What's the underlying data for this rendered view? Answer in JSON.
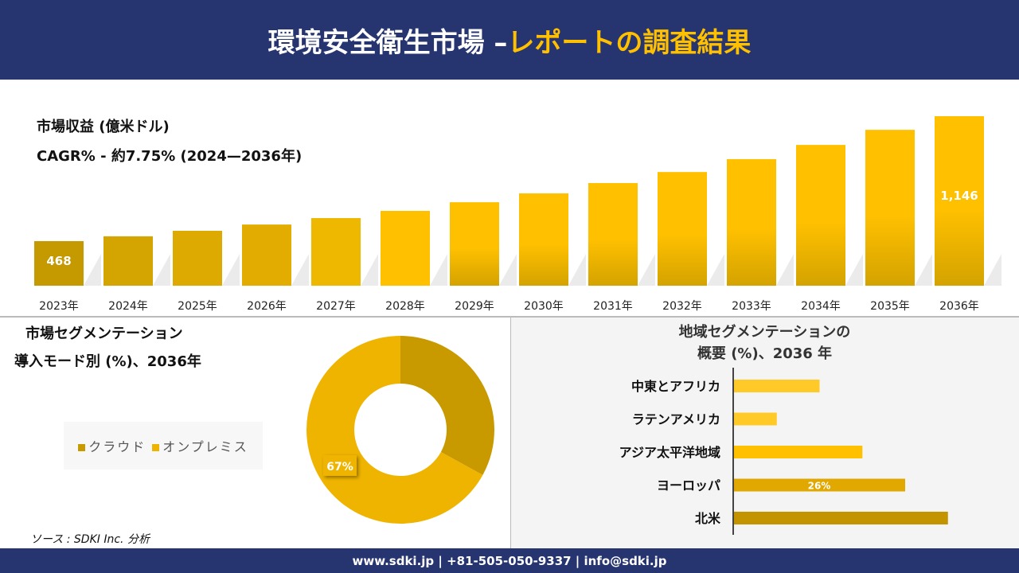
{
  "header": {
    "title_white": "環境安全衛生市場 –",
    "title_yellow": "レポートの調査結果"
  },
  "footer": {
    "contact": "www.sdki.jp | +81-505-050-9337 | info@sdki.jp"
  },
  "source": "ソース : SDKI Inc. 分析",
  "chart_data": [
    {
      "type": "bar",
      "title": "市場収益 (億米ドル)",
      "subtitle": "CAGR% - 約7.75% (2024—2036年)",
      "categories": [
        "2023年",
        "2024年",
        "2025年",
        "2026年",
        "2027年",
        "2028年",
        "2029年",
        "2030年",
        "2031年",
        "2032年",
        "2033年",
        "2034年",
        "2035年",
        "2036年"
      ],
      "values": [
        468,
        494,
        524,
        558,
        593,
        632,
        679,
        727,
        783,
        843,
        913,
        990,
        1072,
        1146
      ],
      "data_labels": {
        "0": "468",
        "13": "1,146"
      },
      "ylim": [
        226,
        1200
      ],
      "grid": false,
      "colors": [
        "#C49A00",
        "#D4A500",
        "#DCAA00",
        "#E2AD00",
        "#EEB800",
        "#FFC000",
        "#FFC000",
        "#FFC000",
        "#FFC000",
        "#FFC000",
        "#FFC000",
        "#FFC000",
        "#FFC000",
        "#FFC000"
      ]
    },
    {
      "type": "pie",
      "title": "市場セグメンテーション",
      "subtitle": "導入モード別 (%)、2036年",
      "categories": [
        "クラウド",
        "オンプレミス"
      ],
      "values": [
        33,
        67
      ],
      "data_labels": [
        "",
        "67%"
      ],
      "colors": [
        "#C89A00",
        "#EFB400"
      ],
      "legend": "left"
    },
    {
      "type": "bar",
      "orientation": "horizontal",
      "title": "地域セグメンテーションの",
      "subtitle": "概要 (%)、2036 年",
      "categories": [
        "中東とアフリカ",
        "ラテンアメリカ",
        "アジア太平洋地域",
        "ヨーロッパ",
        "北米"
      ],
      "values": [
        13,
        6.5,
        19.5,
        26,
        32.5
      ],
      "data_labels": [
        "",
        "",
        "",
        "26%",
        ""
      ],
      "colors": [
        "#FFCA28",
        "#FFCA28",
        "#FFC000",
        "#E0A800",
        "#C49300"
      ]
    }
  ]
}
